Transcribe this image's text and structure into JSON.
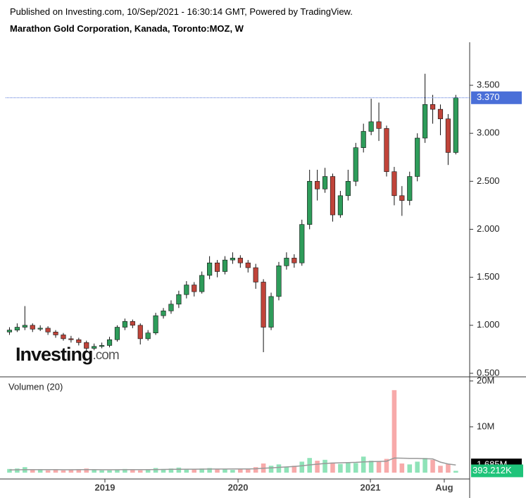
{
  "header": {
    "published": "Published on Investing.com, 10/Sep/2021 - 16:30:14 GMT, Powered by TradingView.",
    "title": "Marathon Gold Corporation, Kanada, Toronto:MOZ, W",
    "watermark_main": "Investing",
    "watermark_suffix": ".com"
  },
  "chart_data": [
    {
      "type": "candlestick",
      "up_color": "#2e9c5a",
      "down_color": "#c0443a",
      "xlim": [
        -0.5,
        59.8
      ],
      "xticks": [
        {
          "value": 12.4,
          "label": "2019"
        },
        {
          "value": 29.7,
          "label": "2020"
        },
        {
          "value": 46.9,
          "label": "2021"
        },
        {
          "value": 56.5,
          "label": "Aug"
        }
      ],
      "ylim": [
        0.463,
        3.948
      ],
      "yticks": [
        {
          "value": 0.5,
          "label": "0.500"
        },
        {
          "value": 1,
          "label": "1.000"
        },
        {
          "value": 1.5,
          "label": "1.500"
        },
        {
          "value": 2,
          "label": "2.000"
        },
        {
          "value": 2.5,
          "label": "2.500"
        },
        {
          "value": 3,
          "label": "3.000"
        },
        {
          "value": 3.5,
          "label": "3.500"
        }
      ],
      "last_value": 3.37,
      "last_label": "3.370",
      "last_color": "#4a6fd8",
      "open": [
        0.93,
        0.95,
        0.98,
        1.0,
        0.96,
        0.97,
        0.93,
        0.9,
        0.86,
        0.85,
        0.82,
        0.76,
        0.78,
        0.79,
        0.85,
        0.98,
        1.04,
        1.0,
        0.86,
        0.92,
        1.1,
        1.15,
        1.22,
        1.32,
        1.42,
        1.35,
        1.52,
        1.65,
        1.56,
        1.68,
        1.7,
        1.65,
        1.6,
        1.45,
        0.98,
        1.3,
        1.62,
        1.7,
        1.65,
        2.05,
        2.5,
        2.42,
        2.55,
        2.15,
        2.35,
        2.5,
        2.85,
        3.02,
        3.12,
        3.05,
        2.6,
        2.35,
        2.3,
        2.55,
        2.95,
        3.3,
        3.25,
        3.15,
        2.8
      ],
      "high": [
        0.98,
        1.02,
        1.2,
        1.02,
        1.0,
        0.99,
        0.95,
        0.92,
        0.89,
        0.87,
        0.84,
        0.81,
        0.82,
        0.88,
        1.0,
        1.07,
        1.06,
        1.02,
        0.95,
        1.13,
        1.18,
        1.26,
        1.36,
        1.46,
        1.45,
        1.56,
        1.72,
        1.68,
        1.72,
        1.76,
        1.73,
        1.68,
        1.64,
        1.48,
        1.34,
        1.66,
        1.76,
        1.74,
        2.1,
        2.62,
        2.62,
        2.64,
        2.58,
        2.4,
        2.62,
        2.9,
        3.1,
        3.36,
        3.32,
        3.08,
        2.65,
        2.45,
        2.6,
        3.0,
        3.62,
        3.4,
        3.3,
        3.2,
        3.4
      ],
      "low": [
        0.9,
        0.93,
        0.95,
        0.93,
        0.94,
        0.9,
        0.87,
        0.84,
        0.82,
        0.79,
        0.72,
        0.74,
        0.76,
        0.77,
        0.83,
        0.95,
        0.97,
        0.8,
        0.84,
        0.9,
        1.07,
        1.12,
        1.18,
        1.28,
        1.3,
        1.33,
        1.48,
        1.5,
        1.53,
        1.64,
        1.6,
        1.55,
        1.38,
        0.72,
        0.95,
        1.26,
        1.58,
        1.6,
        1.62,
        2.0,
        2.3,
        2.38,
        2.08,
        2.12,
        2.3,
        2.45,
        2.8,
        2.98,
        2.92,
        2.55,
        2.25,
        2.14,
        2.25,
        2.5,
        2.9,
        3.1,
        2.98,
        2.67,
        2.78
      ],
      "close": [
        0.95,
        0.98,
        1.0,
        0.96,
        0.97,
        0.93,
        0.9,
        0.86,
        0.85,
        0.82,
        0.76,
        0.78,
        0.79,
        0.85,
        0.98,
        1.04,
        1.0,
        0.86,
        0.92,
        1.1,
        1.15,
        1.22,
        1.32,
        1.42,
        1.35,
        1.52,
        1.65,
        1.56,
        1.68,
        1.7,
        1.65,
        1.6,
        1.45,
        0.98,
        1.3,
        1.62,
        1.7,
        1.65,
        2.05,
        2.5,
        2.42,
        2.55,
        2.15,
        2.35,
        2.5,
        2.85,
        3.02,
        3.12,
        3.05,
        2.6,
        2.35,
        2.3,
        2.55,
        2.95,
        3.3,
        3.25,
        3.15,
        2.8,
        3.37
      ]
    },
    {
      "type": "volume",
      "title": "Volumen (20)",
      "up_color": "#8fe3b8",
      "down_color": "#f7aaaa",
      "ma_color": "#999999",
      "xlim": [
        -0.5,
        59.8
      ],
      "ylim": [
        -1380000,
        20900000
      ],
      "yticks": [
        {
          "value": 10000000,
          "label": "10M"
        },
        {
          "value": 20000000,
          "label": "20M"
        }
      ],
      "values": [
        800000,
        900000,
        1200000,
        600000,
        700000,
        500000,
        600000,
        500000,
        700000,
        600000,
        900000,
        600000,
        500000,
        500000,
        700000,
        800000,
        600000,
        500000,
        700000,
        1000000,
        800000,
        900000,
        1100000,
        800000,
        700000,
        900000,
        1000000,
        700000,
        800000,
        600000,
        900000,
        700000,
        1200000,
        2000000,
        1500000,
        1800000,
        1200000,
        1500000,
        2400000,
        3200000,
        2600000,
        2800000,
        2200000,
        1900000,
        2300000,
        2100000,
        3500000,
        2600000,
        2500000,
        3000000,
        18000000,
        2000000,
        1800000,
        2400000,
        3200000,
        2800000,
        1500000,
        1900000,
        393212
      ],
      "ma": [
        600000,
        620000,
        650000,
        660000,
        670000,
        660000,
        650000,
        640000,
        640000,
        650000,
        660000,
        650000,
        640000,
        630000,
        640000,
        650000,
        660000,
        650000,
        660000,
        680000,
        700000,
        720000,
        740000,
        750000,
        760000,
        770000,
        780000,
        790000,
        790000,
        800000,
        810000,
        820000,
        850000,
        950000,
        1050000,
        1150000,
        1250000,
        1350000,
        1500000,
        1700000,
        1850000,
        2000000,
        2100000,
        2150000,
        2200000,
        2250000,
        2350000,
        2400000,
        2450000,
        2500000,
        3200000,
        3150000,
        3100000,
        3100000,
        3050000,
        3000000,
        2300000,
        1900000,
        1685000
      ],
      "ma_last_label": "1.685M",
      "last_label": "393.212K",
      "ma_label_color": "#000000",
      "last_label_color": "#1fc47a"
    }
  ]
}
